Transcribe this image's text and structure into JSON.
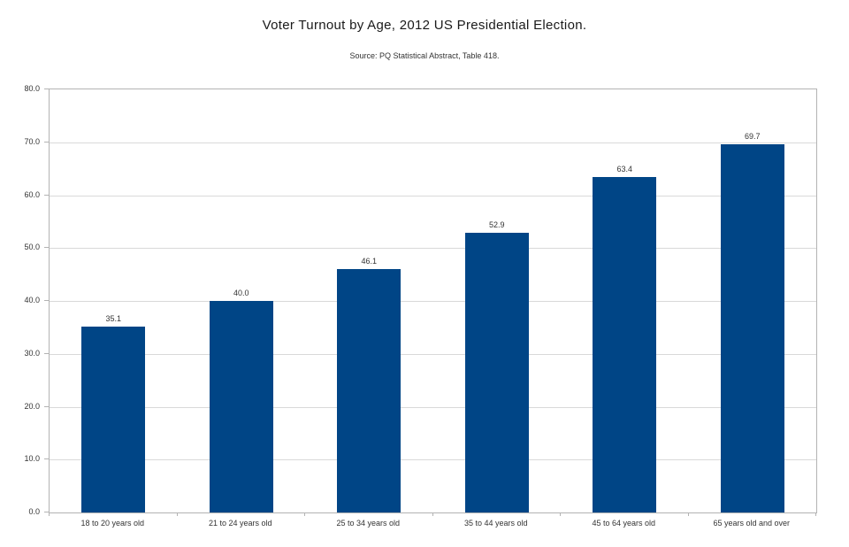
{
  "chart_data": {
    "type": "bar",
    "title": "Voter Turnout by Age, 2012 US Presidential Election.",
    "subtitle": "Source: PQ Statistical Abstract, Table 418.",
    "categories": [
      "18 to 20 years old",
      "21 to 24 years old",
      "25 to 34 years old",
      "35 to 44 years old",
      "45 to 64 years old",
      "65 years old and over"
    ],
    "values": [
      35.1,
      40.0,
      46.1,
      52.9,
      63.4,
      69.7
    ],
    "value_labels": [
      "35.1",
      "40.0",
      "46.1",
      "52.9",
      "63.4",
      "69.7"
    ],
    "xlabel": "",
    "ylabel": "",
    "ylim": [
      0,
      80
    ],
    "ytick_interval": 10,
    "ytick_labels": [
      "0.0",
      "10.0",
      "20.0",
      "30.0",
      "40.0",
      "50.0",
      "60.0",
      "70.0",
      "80.0"
    ],
    "grid": true,
    "legend_position": "none",
    "colors": {
      "bar": "#004586",
      "axis": "#b3b3b3",
      "gridline": "#d9d9d9",
      "text": "#333333",
      "title_text": "#1a1a1a",
      "background": "#ffffff"
    }
  }
}
